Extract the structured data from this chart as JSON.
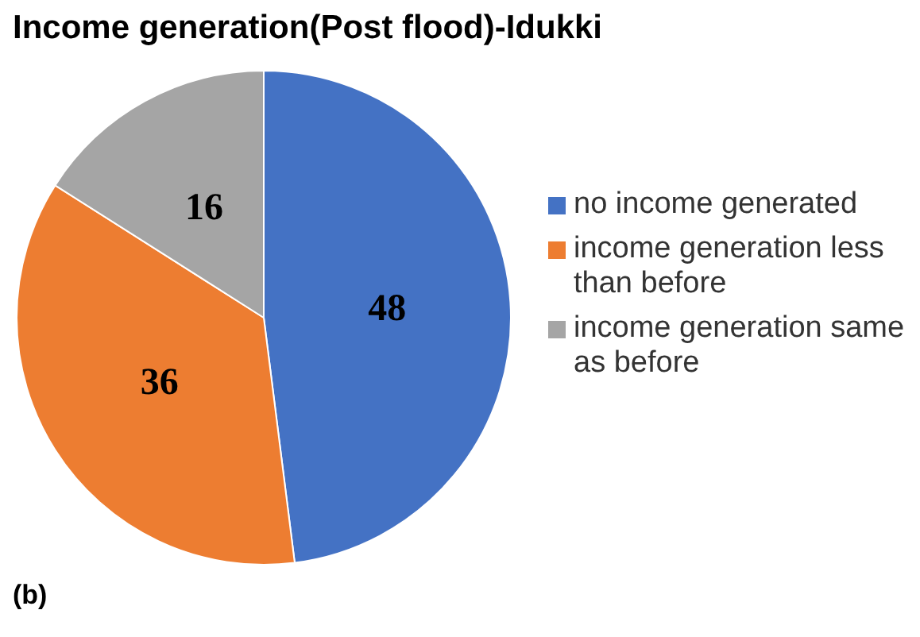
{
  "chart_data": {
    "type": "pie",
    "title": "Income generation(Post flood)-Idukki",
    "categories": [
      "no income generated",
      "income generation less than before",
      "income generation same as before"
    ],
    "values": [
      48,
      36,
      16
    ],
    "colors": [
      "#4472c4",
      "#ed7d31",
      "#a5a5a5"
    ],
    "data_labels": true,
    "legend": "right",
    "annotations": [
      "(b)"
    ]
  }
}
